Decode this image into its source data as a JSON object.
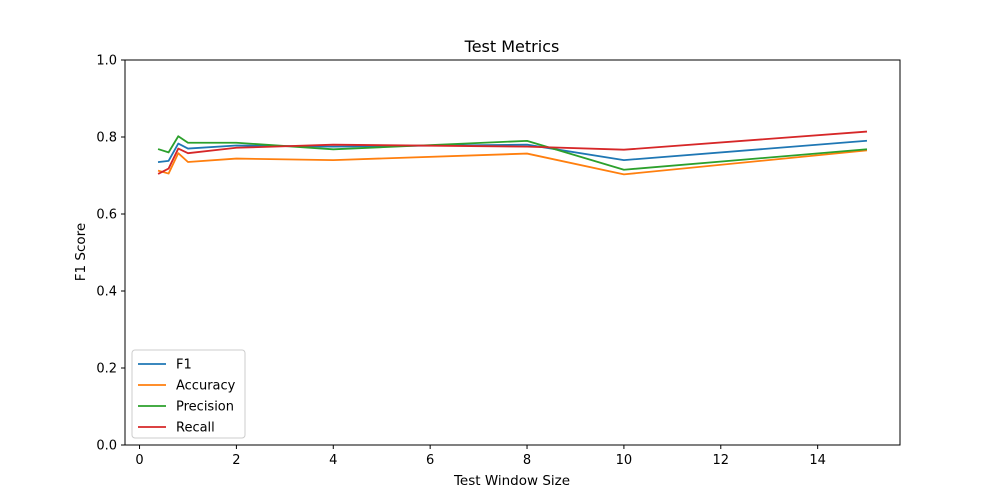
{
  "chart_data": {
    "type": "line",
    "title": "Test Metrics",
    "xlabel": "Test Window Size",
    "ylabel": "F1 Score",
    "xlim": [
      -0.3,
      15.7
    ],
    "ylim": [
      0,
      1.0
    ],
    "xticks": [
      0,
      2,
      4,
      6,
      8,
      10,
      12,
      14
    ],
    "yticks": [
      0.0,
      0.2,
      0.4,
      0.6,
      0.8,
      1.0
    ],
    "ytick_labels": [
      "0.0",
      "0.2",
      "0.4",
      "0.6",
      "0.8",
      "1.0"
    ],
    "grid": false,
    "legend_position": "lower-left",
    "x": [
      0.4,
      0.6,
      0.8,
      1.0,
      2.0,
      4.0,
      8.0,
      10.0,
      15.0
    ],
    "series": [
      {
        "name": "F1",
        "color": "#1f77b4",
        "values": [
          0.735,
          0.738,
          0.783,
          0.77,
          0.778,
          0.775,
          0.78,
          0.74,
          0.79
        ]
      },
      {
        "name": "Accuracy",
        "color": "#ff7f0e",
        "values": [
          0.712,
          0.705,
          0.758,
          0.735,
          0.744,
          0.74,
          0.757,
          0.703,
          0.765
        ]
      },
      {
        "name": "Precision",
        "color": "#2ca02c",
        "values": [
          0.768,
          0.76,
          0.802,
          0.785,
          0.785,
          0.768,
          0.79,
          0.715,
          0.768
        ]
      },
      {
        "name": "Recall",
        "color": "#d62728",
        "values": [
          0.705,
          0.718,
          0.77,
          0.758,
          0.772,
          0.78,
          0.775,
          0.767,
          0.814
        ]
      }
    ]
  }
}
